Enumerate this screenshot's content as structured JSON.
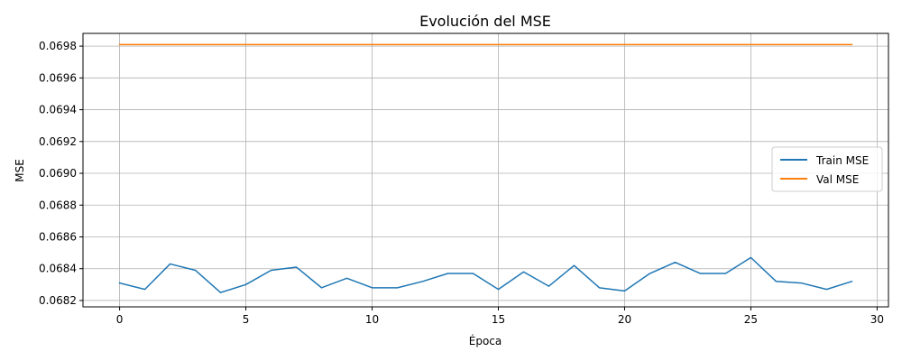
{
  "chart_data": {
    "type": "line",
    "title": "Evolución del MSE",
    "xlabel": "Época",
    "ylabel": "MSE",
    "xlim": [
      -1.45,
      30.45
    ],
    "ylim": [
      0.06816,
      0.06988
    ],
    "xticks": [
      0,
      5,
      10,
      15,
      20,
      25,
      30
    ],
    "xtick_labels": [
      "0",
      "5",
      "10",
      "15",
      "20",
      "25",
      "30"
    ],
    "yticks": [
      0.0682,
      0.0684,
      0.0686,
      0.0688,
      0.069,
      0.0692,
      0.0694,
      0.0696,
      0.0698
    ],
    "ytick_labels": [
      "0.0682",
      "0.0684",
      "0.0686",
      "0.0688",
      "0.0690",
      "0.0692",
      "0.0694",
      "0.0696",
      "0.0698"
    ],
    "grid": true,
    "legend_position": "center-right",
    "x": [
      0,
      1,
      2,
      3,
      4,
      5,
      6,
      7,
      8,
      9,
      10,
      11,
      12,
      13,
      14,
      15,
      16,
      17,
      18,
      19,
      20,
      21,
      22,
      23,
      24,
      25,
      26,
      27,
      28,
      29
    ],
    "series": [
      {
        "name": "Train MSE",
        "color": "#1f77b4",
        "values": [
          0.06831,
          0.06827,
          0.06843,
          0.06839,
          0.06825,
          0.0683,
          0.06839,
          0.06841,
          0.06828,
          0.06834,
          0.06828,
          0.06828,
          0.06832,
          0.06837,
          0.06837,
          0.06827,
          0.06838,
          0.06829,
          0.06842,
          0.06828,
          0.06826,
          0.06837,
          0.06844,
          0.06837,
          0.06837,
          0.06847,
          0.06832,
          0.06831,
          0.06827,
          0.06832
        ]
      },
      {
        "name": "Val MSE",
        "color": "#ff7f0e",
        "values": [
          0.06981,
          0.06981,
          0.06981,
          0.06981,
          0.06981,
          0.06981,
          0.06981,
          0.06981,
          0.06981,
          0.06981,
          0.06981,
          0.06981,
          0.06981,
          0.06981,
          0.06981,
          0.06981,
          0.06981,
          0.06981,
          0.06981,
          0.06981,
          0.06981,
          0.06981,
          0.06981,
          0.06981,
          0.06981,
          0.06981,
          0.06981,
          0.06981,
          0.06981,
          0.06981
        ]
      }
    ]
  }
}
